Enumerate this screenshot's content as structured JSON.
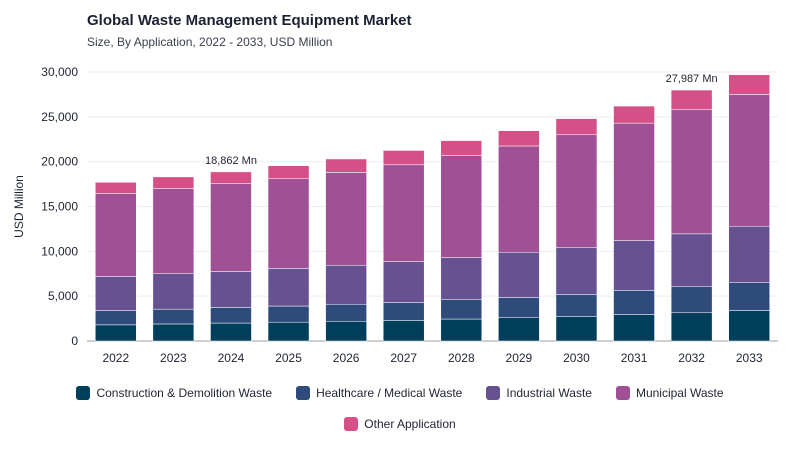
{
  "header": {
    "title": "Global Waste Management Equipment Market",
    "subtitle": "Size, By Application, 2022 - 2033, USD Million"
  },
  "chart_data": {
    "type": "bar",
    "stacked": true,
    "title": "Global Waste Management Equipment Market",
    "subtitle": "Size, By Application, 2022 - 2033, USD Million",
    "xlabel": "",
    "ylabel": "USD Million",
    "ylim": [
      0,
      30000
    ],
    "yticks": [
      0,
      5000,
      10000,
      15000,
      20000,
      25000,
      30000
    ],
    "ytick_labels": [
      "0",
      "5,000",
      "10,000",
      "15,000",
      "20,000",
      "25,000",
      "30,000"
    ],
    "grid": true,
    "legend_position": "bottom",
    "categories": [
      "2022",
      "2023",
      "2024",
      "2025",
      "2026",
      "2027",
      "2028",
      "2029",
      "2030",
      "2031",
      "2032",
      "2033"
    ],
    "series": [
      {
        "name": "Construction & Demolition Waste",
        "color": "#003f5c",
        "values": [
          1800,
          1900,
          2000,
          2100,
          2200,
          2300,
          2450,
          2600,
          2750,
          2950,
          3150,
          3400
        ]
      },
      {
        "name": "Healthcare / Medical Waste",
        "color": "#2f4b7c",
        "values": [
          1600,
          1650,
          1750,
          1800,
          1900,
          2000,
          2150,
          2250,
          2450,
          2700,
          2900,
          3100
        ]
      },
      {
        "name": "Industrial Waste",
        "color": "#665191",
        "values": [
          3800,
          3950,
          4000,
          4200,
          4350,
          4550,
          4700,
          5050,
          5250,
          5550,
          5900,
          6300
        ]
      },
      {
        "name": "Municipal Waste",
        "color": "#a05195",
        "values": [
          9250,
          9500,
          9800,
          10000,
          10350,
          10800,
          11400,
          11850,
          12550,
          13100,
          13850,
          14700
        ]
      },
      {
        "name": "Other Application",
        "color": "#d45087",
        "values": [
          1250,
          1300,
          1312,
          1450,
          1500,
          1600,
          1650,
          1700,
          1800,
          1900,
          2187,
          2200
        ]
      }
    ],
    "annotations": [
      {
        "category": "2024",
        "text": "18,862 Mn"
      },
      {
        "category": "2032",
        "text": "27,987 Mn"
      }
    ]
  }
}
